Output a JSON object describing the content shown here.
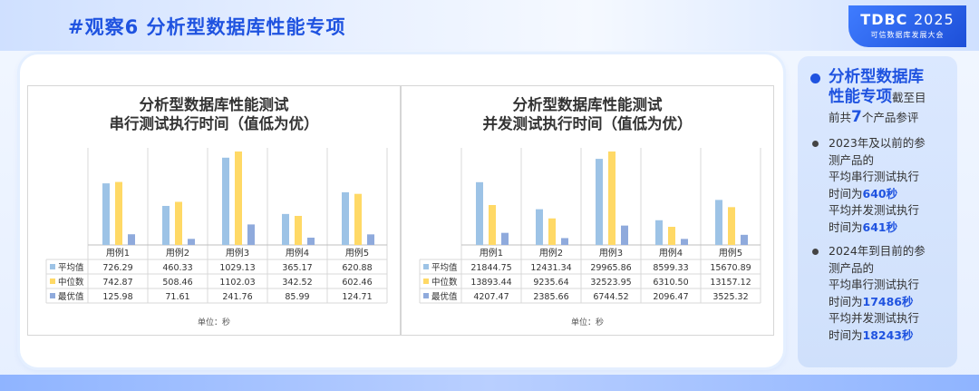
{
  "header": {
    "title": "#观察6  分析型数据库性能专项"
  },
  "brand": {
    "name": "TDBC",
    "year": "2025",
    "subtitle": "可信数据库发展大会"
  },
  "colors": {
    "avg": "#9dc3e6",
    "median": "#ffd966",
    "best": "#8faadc",
    "accent": "#1f53e0"
  },
  "chart_data": [
    {
      "type": "bar",
      "title": [
        "分析型数据库性能测试",
        "串行测试执行时间（值低为优）"
      ],
      "categories": [
        "用例1",
        "用例2",
        "用例3",
        "用例4",
        "用例5"
      ],
      "series": [
        {
          "name": "平均值",
          "values": [
            "726.29",
            "460.33",
            "1029.13",
            "365.17",
            "620.88"
          ]
        },
        {
          "name": "中位数",
          "values": [
            "742.87",
            "508.46",
            "1102.03",
            "342.52",
            "602.46"
          ]
        },
        {
          "name": "最优值",
          "values": [
            "125.98",
            "71.61",
            "241.76",
            "85.99",
            "124.71"
          ]
        }
      ],
      "unit": "单位：秒",
      "ylim": [
        0,
        1102.03
      ],
      "legend": "table-bottom",
      "grid": "vertical"
    },
    {
      "type": "bar",
      "title": [
        "分析型数据库性能测试",
        "并发测试执行时间（值低为优）"
      ],
      "categories": [
        "用例1",
        "用例2",
        "用例3",
        "用例4",
        "用例5"
      ],
      "series": [
        {
          "name": "平均值",
          "values": [
            "21844.75",
            "12431.34",
            "29965.86",
            "8599.33",
            "15670.89"
          ]
        },
        {
          "name": "中位数",
          "values": [
            "13893.44",
            "9235.64",
            "32523.95",
            "6310.50",
            "13157.12"
          ]
        },
        {
          "name": "最优值",
          "values": [
            "4207.47",
            "2385.66",
            "6744.52",
            "2096.47",
            "3525.32"
          ]
        }
      ],
      "unit": "单位：秒",
      "ylim": [
        0,
        32523.95
      ],
      "legend": "table-bottom",
      "grid": "vertical"
    }
  ],
  "sidebar": {
    "headline1": "分析型数据库",
    "headline2": "性能专项",
    "head_tail": "截至目",
    "line2_pre": "前共",
    "product_count": "7",
    "line2_post": "个产品参评",
    "item1": {
      "l1": "2023年及以前的参",
      "l2": "测产品的",
      "l3": "平均串行测试执行",
      "l4_pre": "时间为",
      "serial": "640秒",
      "l5": "平均并发测试执行",
      "l6_pre": "时间为",
      "concurrent": "641秒"
    },
    "item2": {
      "l1": "2024年到目前的参",
      "l2": "测产品的",
      "l3": "平均串行测试执行",
      "l4_pre": "时间为",
      "serial": "17486秒",
      "l5": "平均并发测试执行",
      "l6_pre": "时间为",
      "concurrent": "18243秒"
    }
  }
}
